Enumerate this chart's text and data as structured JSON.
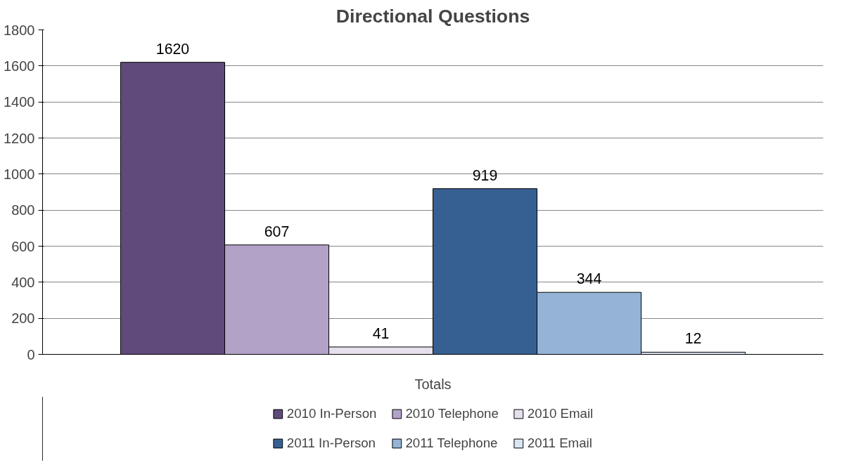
{
  "chart_data": {
    "type": "bar",
    "title": "Directional Questions",
    "categories": [
      "Totals"
    ],
    "series": [
      {
        "name": "2010 In-Person",
        "color": "#604a7b",
        "values": [
          1620
        ]
      },
      {
        "name": "2010 Telephone",
        "color": "#b3a2c7",
        "values": [
          607
        ]
      },
      {
        "name": "2010 Email",
        "color": "#e6e0ec",
        "values": [
          41
        ]
      },
      {
        "name": "2011 In-Person",
        "color": "#376092",
        "values": [
          919
        ]
      },
      {
        "name": "2011 Telephone",
        "color": "#95b3d7",
        "values": [
          344
        ]
      },
      {
        "name": "2011 Email",
        "color": "#dbe5f1",
        "values": [
          12
        ]
      }
    ],
    "ylim": [
      0,
      1800
    ],
    "yticks": [
      0,
      200,
      400,
      600,
      800,
      1000,
      1200,
      1400,
      1600,
      1800
    ],
    "grid": "y",
    "legend": "bottom",
    "data_labels": true
  }
}
